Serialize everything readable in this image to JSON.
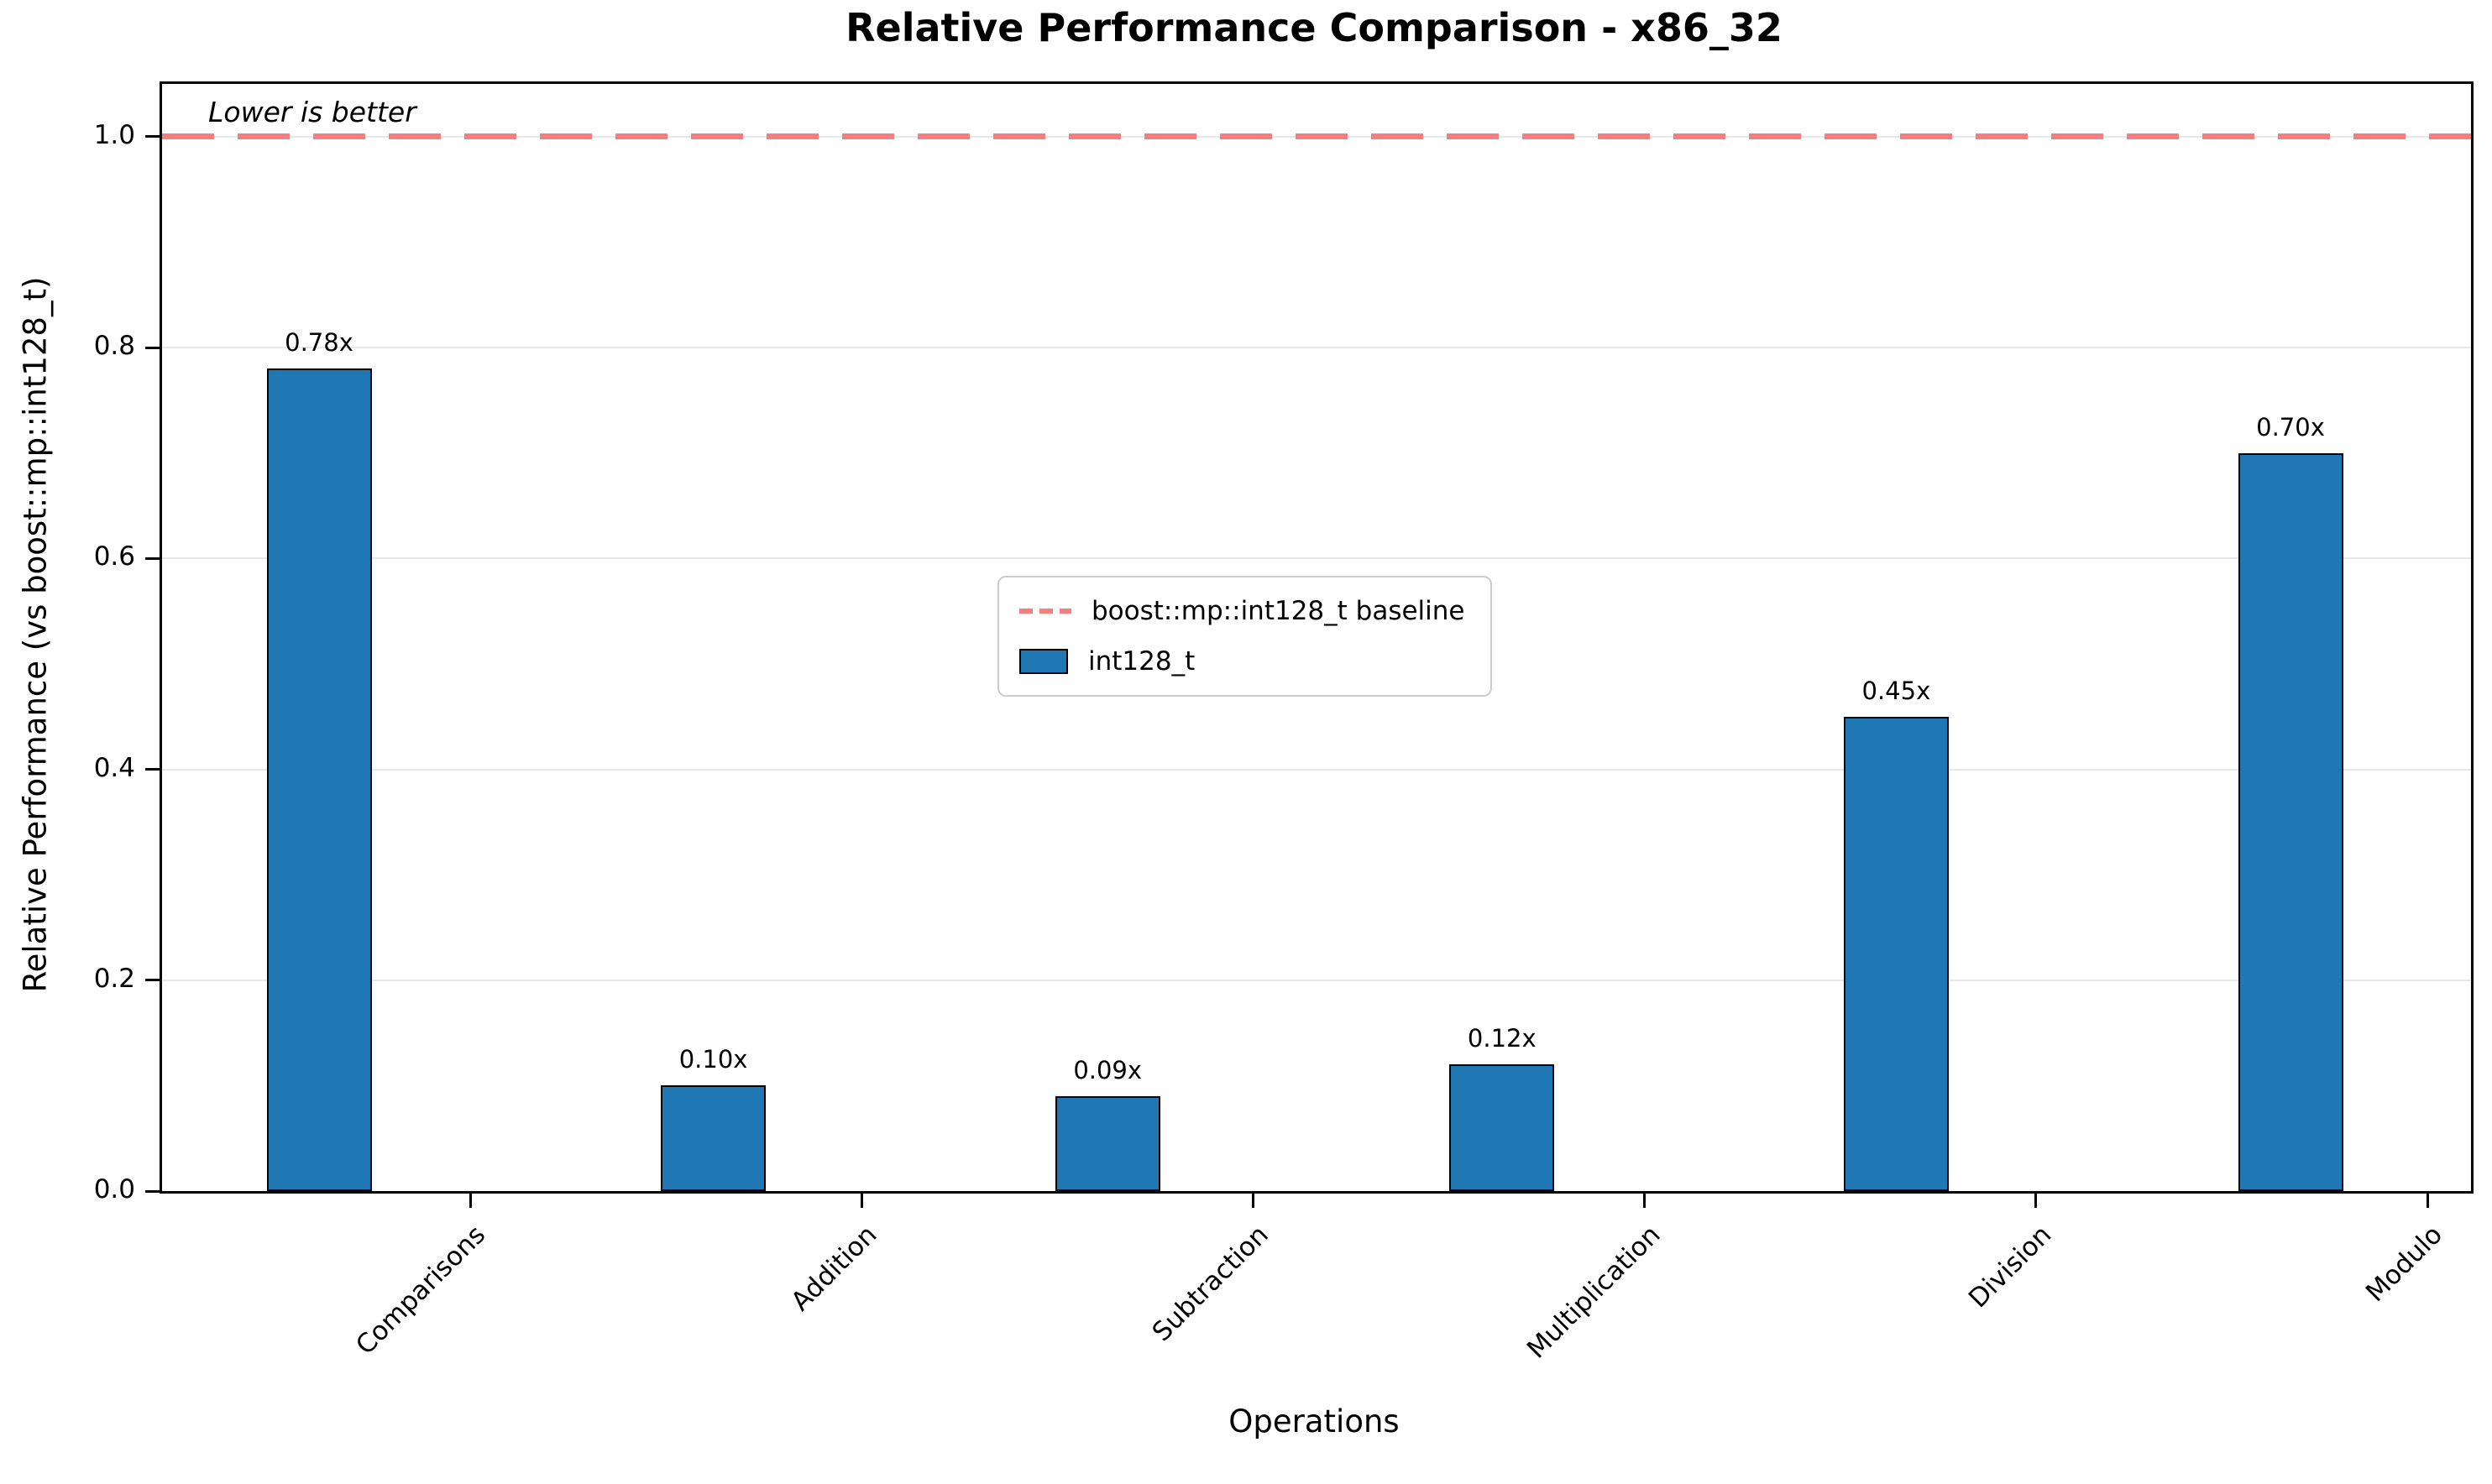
{
  "chart_data": {
    "type": "bar",
    "title": "Relative Performance Comparison - x86_32",
    "xlabel": "Operations",
    "ylabel": "Relative Performance (vs boost::mp::int128_t)",
    "categories": [
      "Comparisons",
      "Addition",
      "Subtraction",
      "Multiplication",
      "Division",
      "Modulo"
    ],
    "values": [
      0.78,
      0.1,
      0.09,
      0.12,
      0.45,
      0.7
    ],
    "bar_value_labels": [
      "0.78x",
      "0.10x",
      "0.09x",
      "0.12x",
      "0.45x",
      "0.70x"
    ],
    "series_name": "int128_t",
    "baseline_value": 1.0,
    "baseline_label": "boost::mp::int128_t baseline",
    "annotation": "Lower is better",
    "ylim": [
      0,
      1.05
    ],
    "ytick_values": [
      0.0,
      0.2,
      0.4,
      0.6,
      0.8,
      1.0
    ],
    "ytick_labels": [
      "0.0",
      "0.2",
      "0.4",
      "0.6",
      "0.8",
      "1.0"
    ],
    "grid": "horizontal",
    "legend_position": "center",
    "colors": {
      "bar_fill": "#1f77b4",
      "bar_edge": "#000000",
      "baseline_line": "#f57f7f",
      "gridline": "#e8e8e8",
      "spine": "#000000"
    }
  }
}
